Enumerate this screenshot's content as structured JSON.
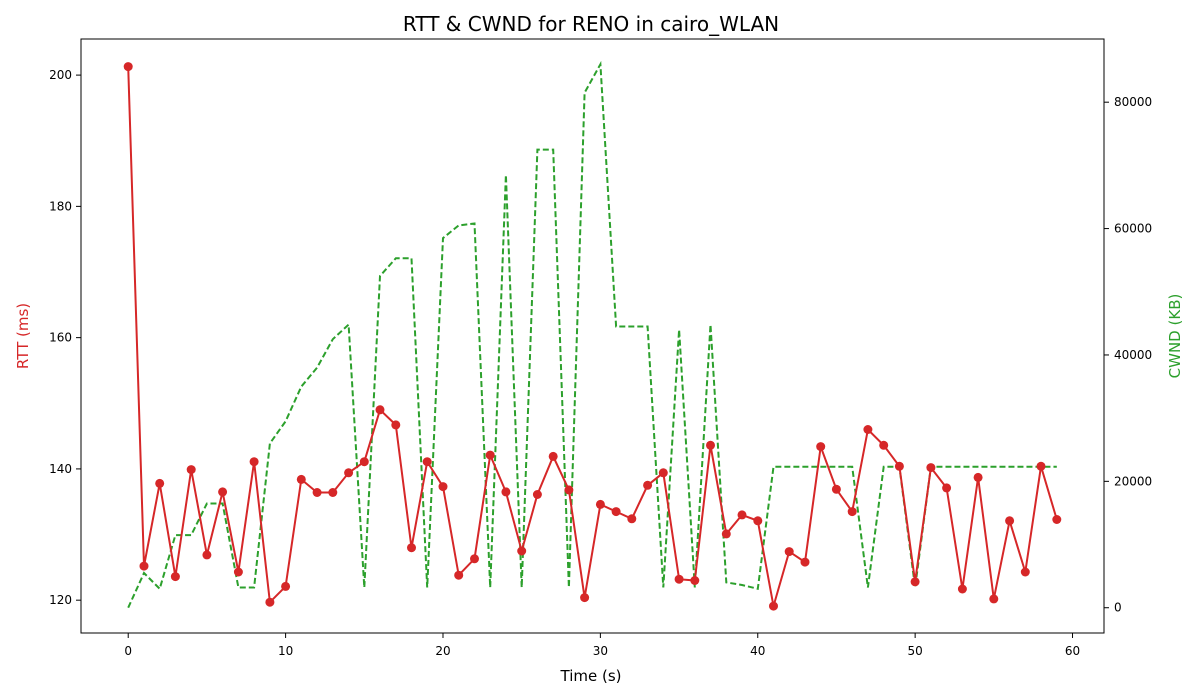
{
  "chart_data": {
    "type": "line",
    "title": "RTT & CWND for RENO in cairo_WLAN",
    "xlabel": "Time (s)",
    "ylabel_left": "RTT (ms)",
    "ylabel_right": "CWND (KB)",
    "xlim": [
      -3,
      62
    ],
    "ylim_left": [
      115,
      205.5
    ],
    "ylim_right": [
      -4000,
      90000
    ],
    "x_ticks": [
      0,
      10,
      20,
      30,
      40,
      50,
      60
    ],
    "y_left_ticks": [
      120,
      140,
      160,
      180,
      200
    ],
    "y_right_ticks": [
      0,
      20000,
      40000,
      60000,
      80000
    ],
    "grid": false,
    "colors": {
      "rtt": "#d62728",
      "cwnd": "#2ca02c"
    },
    "series": [
      {
        "name": "RTT",
        "axis": "left",
        "style": "solid-markers",
        "x": [
          0,
          1,
          2,
          3,
          4,
          5,
          6,
          7,
          8,
          9,
          10,
          11,
          12,
          13,
          14,
          15,
          16,
          17,
          18,
          19,
          20,
          21,
          22,
          23,
          24,
          25,
          26,
          27,
          28,
          29,
          30,
          31,
          32,
          33,
          34,
          35,
          36,
          37,
          38,
          39,
          40,
          41,
          42,
          43,
          44,
          45,
          46,
          47,
          48,
          49,
          50,
          51,
          52,
          53,
          54,
          55,
          56,
          57,
          58,
          59
        ],
        "values": [
          201.3,
          125.2,
          137.8,
          123.6,
          139.9,
          126.9,
          136.5,
          124.3,
          141.1,
          119.7,
          122.1,
          138.4,
          136.4,
          136.4,
          139.4,
          141.1,
          149.0,
          146.7,
          128.0,
          141.1,
          137.3,
          123.8,
          126.3,
          142.1,
          136.5,
          127.5,
          136.1,
          141.9,
          136.8,
          120.4,
          134.6,
          133.5,
          132.4,
          137.5,
          139.4,
          123.2,
          123.0,
          143.6,
          130.1,
          133.0,
          132.1,
          119.1,
          127.4,
          125.8,
          143.4,
          136.9,
          133.5,
          146.0,
          143.6,
          140.4,
          122.8,
          140.2,
          137.1,
          121.7,
          138.7,
          120.2,
          132.1,
          124.3,
          140.4,
          132.3
        ]
      },
      {
        "name": "CWND",
        "axis": "right",
        "style": "dashed",
        "x": [
          0,
          1,
          2,
          3,
          4,
          5,
          6,
          7,
          8,
          9,
          10,
          11,
          12,
          13,
          14,
          15,
          16,
          17,
          18,
          19,
          20,
          21,
          22,
          23,
          24,
          25,
          26,
          27,
          28,
          29,
          30,
          31,
          32,
          33,
          34,
          35,
          36,
          37,
          38,
          39,
          40,
          41,
          42,
          43,
          44,
          45,
          46,
          47,
          48,
          49,
          50,
          51,
          52,
          53,
          54,
          55,
          56,
          57,
          58,
          59
        ],
        "values": [
          0,
          5500,
          3000,
          11500,
          11500,
          16500,
          16500,
          3200,
          3200,
          26000,
          29500,
          35000,
          38000,
          42500,
          44800,
          3200,
          52500,
          55300,
          55300,
          3200,
          58500,
          60500,
          60800,
          3200,
          68500,
          3200,
          72500,
          72500,
          3200,
          81500,
          86000,
          44500,
          44500,
          44500,
          3200,
          44000,
          3200,
          44800,
          4000,
          3600,
          3000,
          22300,
          22300,
          22300,
          22300,
          22300,
          22300,
          3200,
          22300,
          22300,
          3200,
          22300,
          22300,
          22300,
          22300,
          22300,
          22300,
          22300,
          22300,
          22300
        ]
      }
    ]
  }
}
